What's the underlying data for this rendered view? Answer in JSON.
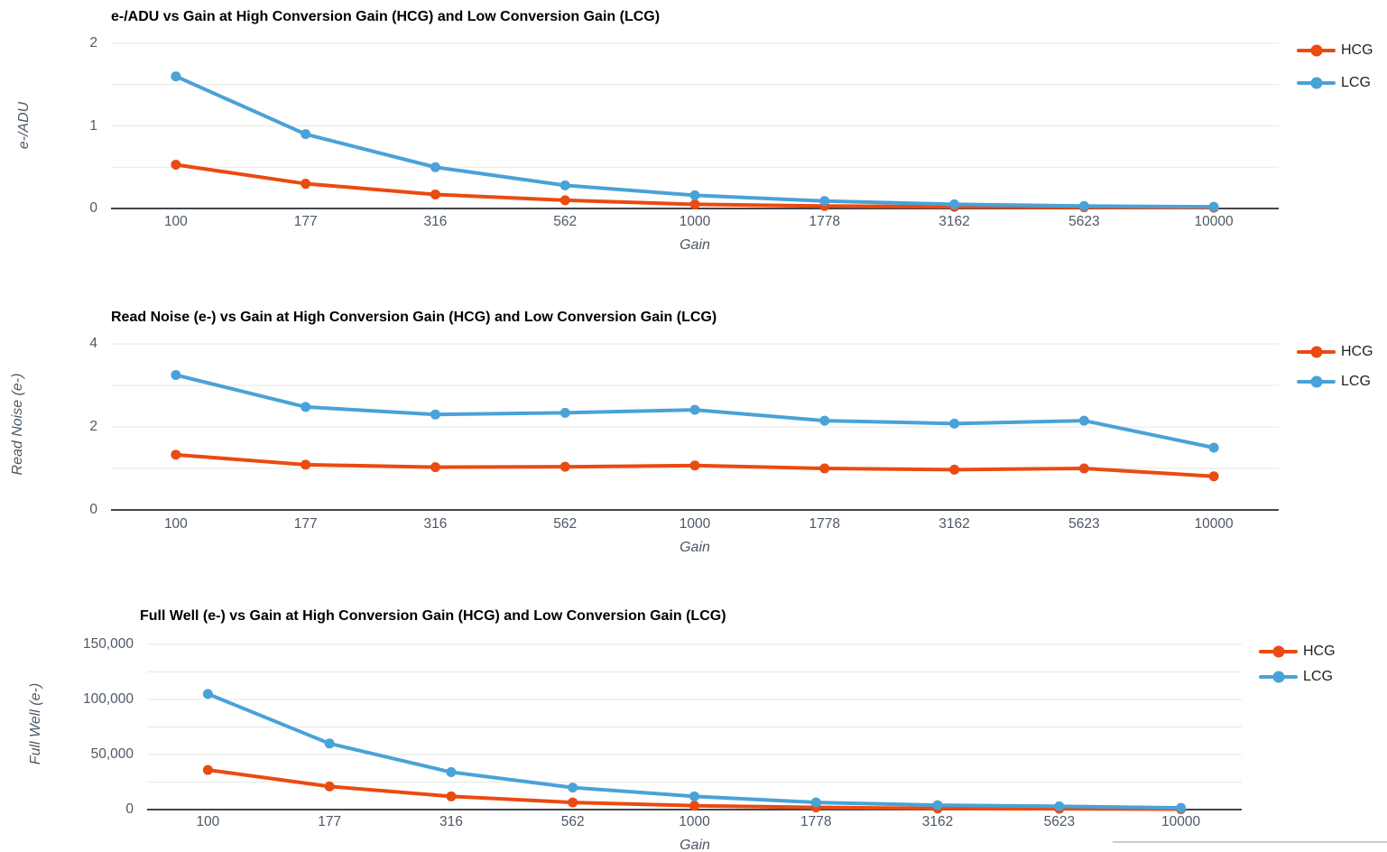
{
  "page": {
    "background": "#ffffff",
    "tick_color": "#4d5866",
    "gridline_color": "#e7e7e7",
    "baseline_color": "#42464d"
  },
  "chart_data": [
    {
      "type": "line",
      "title": "e-/ADU vs Gain at High Conversion Gain (HCG) and Low Conversion Gain (LCG)",
      "xlabel": "Gain",
      "ylabel": "e-/ADU",
      "categories": [
        "100",
        "177",
        "316",
        "562",
        "1000",
        "1778",
        "3162",
        "5623",
        "10000"
      ],
      "series": [
        {
          "name": "HCG",
          "color": "#EB4A10",
          "values": [
            0.53,
            0.3,
            0.17,
            0.1,
            0.05,
            0.03,
            0.02,
            0.015,
            0.01
          ]
        },
        {
          "name": "LCG",
          "color": "#49A2D8",
          "values": [
            1.6,
            0.9,
            0.5,
            0.28,
            0.16,
            0.09,
            0.05,
            0.03,
            0.02
          ]
        }
      ],
      "ylim": [
        0,
        2
      ],
      "grid_step": 0.5,
      "grid": true,
      "legend_position": "right",
      "yticks": [
        {
          "value": 0,
          "label": "0"
        },
        {
          "value": 1,
          "label": "1"
        },
        {
          "value": 2,
          "label": "2"
        }
      ]
    },
    {
      "type": "line",
      "title": "Read Noise (e-) vs Gain at High Conversion Gain (HCG) and Low Conversion Gain (LCG)",
      "xlabel": "Gain",
      "ylabel": "Read Noise (e-)",
      "categories": [
        "100",
        "177",
        "316",
        "562",
        "1000",
        "1778",
        "3162",
        "5623",
        "10000"
      ],
      "series": [
        {
          "name": "HCG",
          "color": "#EB4A10",
          "values": [
            1.33,
            1.09,
            1.03,
            1.04,
            1.07,
            1.0,
            0.97,
            1.0,
            0.81
          ]
        },
        {
          "name": "LCG",
          "color": "#49A2D8",
          "values": [
            3.25,
            2.48,
            2.3,
            2.34,
            2.41,
            2.15,
            2.08,
            2.15,
            1.5
          ]
        }
      ],
      "ylim": [
        0,
        4
      ],
      "grid_step": 1,
      "grid": true,
      "legend_position": "right",
      "yticks": [
        {
          "value": 0,
          "label": "0"
        },
        {
          "value": 2,
          "label": "2"
        },
        {
          "value": 4,
          "label": "4"
        }
      ]
    },
    {
      "type": "line",
      "title": "Full Well (e-) vs Gain at High Conversion Gain (HCG) and Low Conversion Gain (LCG)",
      "xlabel": "Gain",
      "ylabel": "Full Well (e-)",
      "categories": [
        "100",
        "177",
        "316",
        "562",
        "1000",
        "1778",
        "3162",
        "5623",
        "10000"
      ],
      "series": [
        {
          "name": "HCG",
          "color": "#EB4A10",
          "values": [
            36000,
            21000,
            12000,
            6500,
            3500,
            2000,
            1000,
            700,
            400
          ]
        },
        {
          "name": "LCG",
          "color": "#49A2D8",
          "values": [
            105000,
            60000,
            34000,
            20000,
            12000,
            6500,
            4000,
            3000,
            1500
          ]
        }
      ],
      "ylim": [
        0,
        150000
      ],
      "grid_step": 25000,
      "grid": true,
      "legend_position": "right",
      "yticks": [
        {
          "value": 0,
          "label": "0"
        },
        {
          "value": 50000,
          "label": "50,000"
        },
        {
          "value": 100000,
          "label": "100,000"
        },
        {
          "value": 150000,
          "label": "150,000"
        }
      ]
    }
  ]
}
